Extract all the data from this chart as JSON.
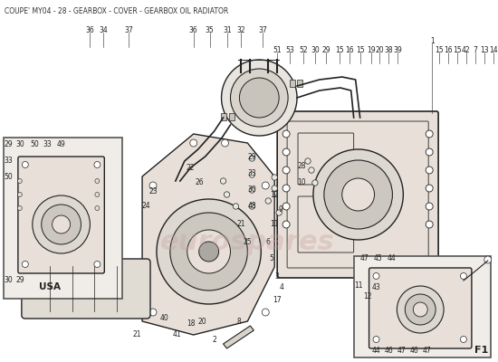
{
  "title": "COUPE' MY04 - 28 - GEARBOX - COVER - GEARBOX OIL RADIATOR",
  "bg_color": "#ffffff",
  "title_color": "#333333",
  "title_fontsize": 5.5,
  "watermark_text": "eurospares",
  "watermark_color": "#c8a0a0",
  "watermark_alpha": 0.35,
  "diagram_bg": "#f5f0eb",
  "border_color": "#888888",
  "line_color": "#222222",
  "component_fill": "#e8e0d8",
  "inset_bg": "#f0ece8"
}
